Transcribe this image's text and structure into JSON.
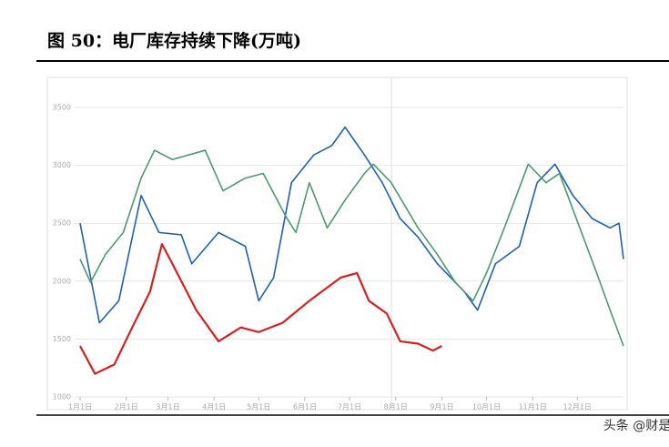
{
  "chart_data": {
    "type": "line",
    "title": "图 50：电厂库存持续下降(万吨)",
    "source": "头条 @财是",
    "xlim": [
      0,
      365
    ],
    "xticks": [
      {
        "value": 0,
        "label": "1月1日"
      },
      {
        "value": 31,
        "label": "2月1日"
      },
      {
        "value": 59,
        "label": "3月1日"
      },
      {
        "value": 90,
        "label": "4月1日"
      },
      {
        "value": 120,
        "label": "5月1日"
      },
      {
        "value": 151,
        "label": "6月1日"
      },
      {
        "value": 181,
        "label": "7月1日"
      },
      {
        "value": 212,
        "label": "8月1日"
      },
      {
        "value": 243,
        "label": "9月1日"
      },
      {
        "value": 273,
        "label": "10月1日"
      },
      {
        "value": 304,
        "label": "11月1日"
      },
      {
        "value": 334,
        "label": "12月1日"
      }
    ],
    "ylim": [
      1000,
      3500
    ],
    "yticks": [
      1000,
      1500,
      2000,
      2500,
      3000,
      3500
    ],
    "grid": true,
    "series": [
      {
        "color": "#1f5fb4",
        "x": [
          0,
          13,
          26,
          41,
          53,
          68,
          75,
          93,
          111,
          120,
          130,
          142,
          157,
          169,
          178,
          191,
          203,
          215,
          227,
          240,
          258,
          267,
          279,
          295,
          307,
          319,
          331,
          344,
          356,
          362,
          365
        ],
        "values": [
          2500,
          1640,
          1830,
          2740,
          2420,
          2400,
          2150,
          2420,
          2300,
          1830,
          2030,
          2850,
          3090,
          3170,
          3330,
          3090,
          2850,
          2540,
          2380,
          2150,
          1910,
          1750,
          2150,
          2300,
          2850,
          3010,
          2740,
          2540,
          2460,
          2500,
          2190
        ]
      },
      {
        "color": "#4a9a6e",
        "x": [
          0,
          7,
          17,
          29,
          41,
          50,
          62,
          84,
          96,
          111,
          123,
          139,
          145,
          154,
          166,
          178,
          191,
          197,
          209,
          227,
          240,
          252,
          264,
          273,
          285,
          301,
          313,
          322,
          331,
          347,
          356,
          365
        ],
        "values": [
          2190,
          1990,
          2230,
          2420,
          2890,
          3130,
          3050,
          3130,
          2780,
          2890,
          2930,
          2540,
          2420,
          2850,
          2460,
          2700,
          2930,
          3010,
          2850,
          2460,
          2230,
          1990,
          1830,
          2070,
          2460,
          3010,
          2850,
          2930,
          2620,
          2070,
          1750,
          1440
        ]
      },
      {
        "color": "#d62020",
        "x": [
          0,
          10,
          23,
          35,
          47,
          55,
          62,
          78,
          93,
          108,
          120,
          136,
          154,
          175,
          186,
          194,
          206,
          215,
          227,
          237,
          243
        ],
        "values": [
          1440,
          1200,
          1280,
          1600,
          1910,
          2320,
          2150,
          1750,
          1480,
          1600,
          1560,
          1640,
          1830,
          2030,
          2070,
          1830,
          1720,
          1480,
          1460,
          1400,
          1440
        ]
      }
    ]
  }
}
